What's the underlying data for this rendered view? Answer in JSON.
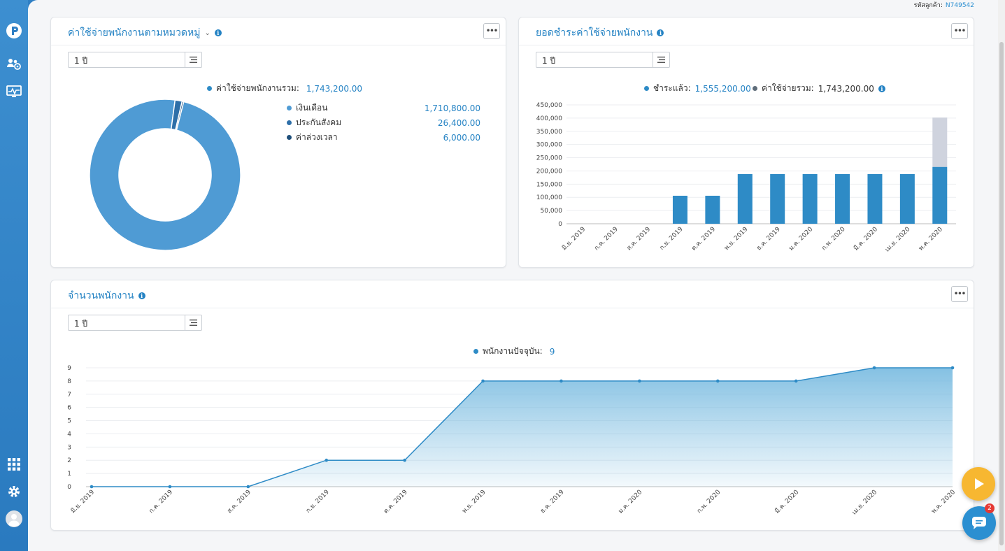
{
  "header": {
    "customer_label": "รหัสลูกค้า:",
    "customer_id": "N749542"
  },
  "sidebar": {
    "items": [
      "logo-icon",
      "people-settings-icon",
      "monitor-chart-icon",
      "apps-grid-icon",
      "gear-icon",
      "user-avatar-icon"
    ]
  },
  "colors": {
    "accent": "#2583c4",
    "salary": "#4f9bd4",
    "social": "#2e6fa8",
    "overtime": "#1f4f7a",
    "paid": "#2e8bc6",
    "total": "#cfd3de"
  },
  "expense_card": {
    "title": "ค่าใช้จ่ายพนักงานตามหมวดหมู่",
    "period": "1 ปี",
    "total_label": "ค่าใช้จ่ายพนักงานรวม:",
    "total_value": "1,743,200.00",
    "items": [
      {
        "label": "เงินเดือน",
        "value": "1,710,800.00"
      },
      {
        "label": "ประกันสังคม",
        "value": "26,400.00"
      },
      {
        "label": "ค่าล่วงเวลา",
        "value": "6,000.00"
      }
    ]
  },
  "payment_card": {
    "title": "ยอดชำระค่าใช้จ่ายพนักงาน",
    "period": "1 ปี",
    "paid_label": "ชำระแล้ว:",
    "paid_value": "1,555,200.00",
    "total_label": "ค่าใช้จ่ายรวม:",
    "total_value": "1,743,200.00"
  },
  "headcount_card": {
    "title": "จำนวนพนักงาน",
    "period": "1 ปี",
    "current_label": "พนักงานปัจจุบัน:",
    "current_value": "9"
  },
  "chart_data": [
    {
      "type": "pie",
      "categories": [
        "เงินเดือน",
        "ประกันสังคม",
        "ค่าล่วงเวลา"
      ],
      "values": [
        1710800,
        26400,
        6000
      ]
    },
    {
      "type": "bar",
      "categories": [
        "มิ.ย. 2019",
        "ก.ค. 2019",
        "ส.ค. 2019",
        "ก.ย. 2019",
        "ต.ค. 2019",
        "พ.ย. 2019",
        "ธ.ค. 2019",
        "ม.ค. 2020",
        "ก.พ. 2020",
        "มี.ค. 2020",
        "เม.ย. 2020",
        "พ.ค. 2020"
      ],
      "series": [
        {
          "name": "ชำระแล้ว",
          "values": [
            0,
            0,
            0,
            106000,
            106000,
            188000,
            188000,
            188000,
            188000,
            188000,
            188000,
            215000
          ]
        },
        {
          "name": "ค่าใช้จ่ายรวม",
          "values": [
            0,
            0,
            0,
            106000,
            106000,
            188000,
            188000,
            188000,
            188000,
            188000,
            188000,
            402000
          ]
        }
      ],
      "yticks": [
        "0",
        "50,000",
        "100,000",
        "150,000",
        "200,000",
        "250,000",
        "300,000",
        "350,000",
        "400,000",
        "450,000"
      ],
      "ylim": [
        0,
        450000
      ]
    },
    {
      "type": "area",
      "categories": [
        "มิ.ย. 2019",
        "ก.ค. 2019",
        "ส.ค. 2019",
        "ก.ย. 2019",
        "ต.ค. 2019",
        "พ.ย. 2019",
        "ธ.ค. 2019",
        "ม.ค. 2020",
        "ก.พ. 2020",
        "มี.ค. 2020",
        "เม.ย. 2020",
        "พ.ค. 2020"
      ],
      "series": [
        {
          "name": "พนักงานปัจจุบัน",
          "values": [
            0,
            0,
            0,
            2,
            2,
            8,
            8,
            8,
            8,
            8,
            9,
            9
          ]
        }
      ],
      "yticks": [
        "0",
        "1",
        "2",
        "3",
        "4",
        "5",
        "6",
        "7",
        "8",
        "9"
      ],
      "ylim": [
        0,
        9
      ]
    }
  ],
  "fab": {
    "chat_badge": "2"
  }
}
